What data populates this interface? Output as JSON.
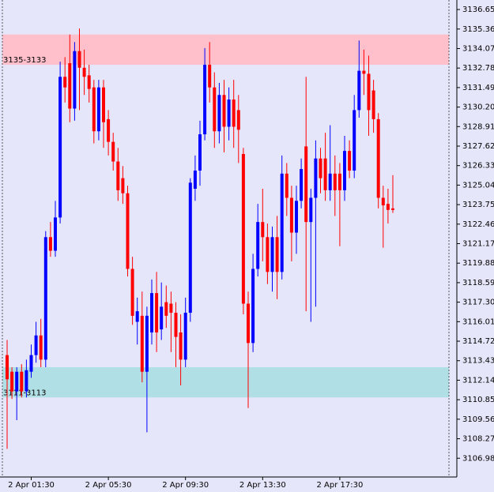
{
  "chart_data": {
    "type": "candlestick",
    "categories": [
      null,
      null,
      null,
      null,
      null,
      "2 Apr 01:30",
      null,
      null,
      null,
      null,
      null,
      null,
      null,
      null,
      null,
      null,
      null,
      null,
      null,
      null,
      null,
      "2 Apr 05:30",
      null,
      null,
      null,
      null,
      null,
      null,
      null,
      null,
      null,
      null,
      null,
      null,
      null,
      null,
      null,
      "2 Apr 09:30",
      null,
      null,
      null,
      null,
      null,
      null,
      null,
      null,
      null,
      null,
      null,
      null,
      null,
      null,
      null,
      "2 Apr 13:30",
      null,
      null,
      null,
      null,
      null,
      null,
      null,
      null,
      null,
      null,
      null,
      null,
      null,
      null,
      null,
      "2 Apr 17:30",
      null,
      null,
      null,
      null,
      null,
      null,
      null,
      null,
      null,
      null,
      null
    ],
    "open": [
      3113.8,
      3112.7,
      3111.4,
      3112.7,
      3111.4,
      3112.7,
      3113.8,
      3115.1,
      3113.5,
      3121.6,
      3120.7,
      3122.9,
      3132.2,
      3133.1,
      3130.1,
      3133.9,
      3132.8,
      3132.3,
      3131.5,
      3128.6,
      3131.5,
      3129.4,
      3127.9,
      3126.6,
      3125.5,
      3124.5,
      3119.5,
      3116.0,
      3116.4,
      3112.7,
      3115.3,
      3117.9,
      3115.5,
      3117.3,
      3117.2,
      3116.6,
      3115.3,
      3113.5,
      3116.6,
      3124.8,
      3126.0,
      3128.4,
      3133.0,
      3131.5,
      3128.6,
      3131.0,
      3128.9,
      3130.7,
      3130.0,
      3127.1,
      3117.2,
      3114.6,
      3119.5,
      3122.6,
      3121.6,
      3119.3,
      3121.6,
      3119.3,
      3125.8,
      3124.2,
      3121.9,
      3124.0,
      3127.6,
      3122.6,
      3124.2,
      3126.8,
      3126.8,
      3124.7,
      3125.8,
      3125.8,
      3124.7,
      3127.3,
      3126.0,
      3130.0,
      3132.6,
      3132.4,
      3131.3,
      3129.4,
      3124.2,
      3123.8,
      3123.5
    ],
    "high": [
      3114.8,
      3113.0,
      3113.0,
      3113.2,
      3113.5,
      3114.5,
      3116.0,
      3116.2,
      3122.0,
      3122.6,
      3124.0,
      3133.2,
      3133.5,
      3135.0,
      3134.5,
      3135.4,
      3134.0,
      3133.0,
      3132.0,
      3132.0,
      3132.0,
      3130.0,
      3128.5,
      3127.5,
      3126.3,
      3125.0,
      3120.3,
      3117.6,
      3118.0,
      3117.0,
      3118.8,
      3119.3,
      3118.6,
      3118.4,
      3118.0,
      3117.3,
      3116.5,
      3117.6,
      3125.5,
      3127.0,
      3129.3,
      3134.1,
      3134.5,
      3132.5,
      3131.8,
      3132.0,
      3131.5,
      3132.0,
      3131.0,
      3127.5,
      3118.0,
      3120.5,
      3123.8,
      3124.8,
      3122.5,
      3122.3,
      3123.0,
      3127.0,
      3126.5,
      3125.0,
      3125.0,
      3126.8,
      3132.2,
      3124.8,
      3128.0,
      3127.5,
      3128.5,
      3129.0,
      3127.0,
      3126.5,
      3128.3,
      3128.0,
      3131.0,
      3134.6,
      3134.0,
      3133.6,
      3132.0,
      3129.8,
      3125.0,
      3124.8,
      3125.7
    ],
    "low": [
      3107.6,
      3110.9,
      3109.5,
      3111.0,
      3111.0,
      3112.3,
      3113.3,
      3113.0,
      3113.0,
      3120.3,
      3120.3,
      3122.5,
      3130.5,
      3129.2,
      3129.3,
      3130.0,
      3131.0,
      3130.5,
      3127.8,
      3128.0,
      3127.5,
      3127.0,
      3126.0,
      3124.0,
      3123.8,
      3119.0,
      3115.8,
      3114.5,
      3112.0,
      3108.7,
      3114.5,
      3114.0,
      3114.8,
      3115.6,
      3114.0,
      3113.0,
      3111.8,
      3113.0,
      3116.0,
      3124.0,
      3125.0,
      3128.0,
      3130.5,
      3127.5,
      3127.8,
      3127.2,
      3128.0,
      3127.5,
      3126.5,
      3116.5,
      3110.3,
      3114.0,
      3119.0,
      3120.0,
      3118.5,
      3118.0,
      3117.5,
      3118.8,
      3123.0,
      3120.0,
      3120.5,
      3123.5,
      3116.7,
      3116.0,
      3117.0,
      3124.5,
      3124.0,
      3124.0,
      3123.0,
      3121.0,
      3124.0,
      3125.5,
      3125.5,
      3129.5,
      3131.0,
      3128.3,
      3128.5,
      3123.5,
      3120.9,
      3122.5,
      3123.2
    ],
    "close": [
      3112.2,
      3111.4,
      3112.7,
      3111.4,
      3112.8,
      3113.8,
      3115.1,
      3113.5,
      3121.6,
      3120.7,
      3122.9,
      3132.2,
      3131.5,
      3130.1,
      3133.9,
      3132.8,
      3132.2,
      3131.4,
      3128.6,
      3131.5,
      3129.2,
      3127.9,
      3126.6,
      3124.7,
      3124.5,
      3119.5,
      3116.4,
      3116.7,
      3112.7,
      3116.4,
      3117.9,
      3115.3,
      3117.0,
      3116.4,
      3116.6,
      3115.0,
      3113.5,
      3116.6,
      3125.2,
      3126.0,
      3128.4,
      3133.0,
      3131.5,
      3128.6,
      3131.0,
      3128.9,
      3130.7,
      3128.9,
      3128.7,
      3117.2,
      3114.6,
      3119.5,
      3122.6,
      3121.6,
      3119.3,
      3121.6,
      3119.3,
      3125.8,
      3124.2,
      3121.9,
      3124.0,
      3126.1,
      3122.6,
      3124.2,
      3126.8,
      3125.5,
      3124.7,
      3125.8,
      3124.7,
      3124.7,
      3127.3,
      3126.0,
      3130.0,
      3132.6,
      3132.4,
      3130.0,
      3129.4,
      3124.2,
      3123.7,
      3123.4,
      3123.4
    ],
    "up_color": "#0000ff",
    "down_color": "#ff0000",
    "zones": [
      {
        "label": "3135-3133",
        "from": 3133,
        "to": 3135,
        "color": "#ffc0cb"
      },
      {
        "label": "3111-3113",
        "from": 3111,
        "to": 3113,
        "color": "#b0e0e6"
      }
    ],
    "ylim": [
      3105.74,
      3137.28
    ],
    "yticks": [
      3136.65,
      3135.36,
      3134.07,
      3132.78,
      3131.49,
      {
        "value": 3130.2,
        "label": "3130.20"
      },
      3128.91,
      3127.62,
      3126.33,
      3125.04,
      3123.75,
      3122.46,
      3121.17,
      3119.88,
      3118.59,
      {
        "value": 3117.3,
        "label": "3117.30"
      },
      3116.01,
      3114.72,
      3113.43,
      3112.14,
      3110.85,
      3109.56,
      3108.27,
      3106.98
    ]
  }
}
